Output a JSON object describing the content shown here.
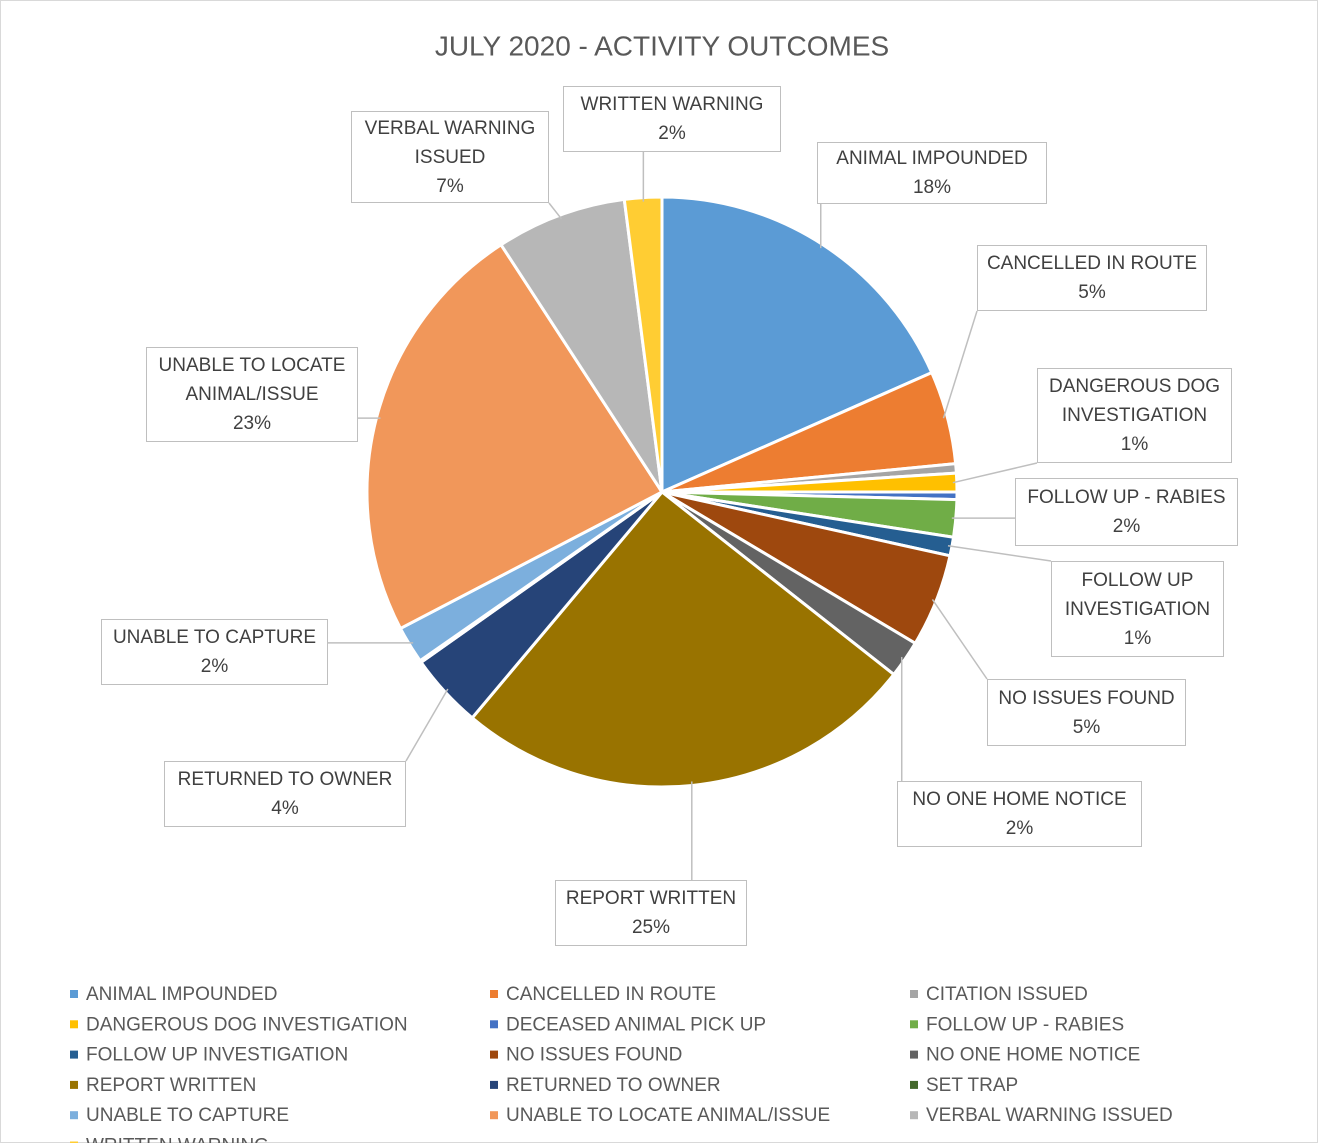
{
  "chart_data": {
    "type": "pie",
    "title": "JULY 2020 - ACTIVITY OUTCOMES",
    "categories": [
      "ANIMAL IMPOUNDED",
      "CANCELLED IN ROUTE",
      "CITATION ISSUED",
      "DANGEROUS DOG INVESTIGATION",
      "DECEASED ANIMAL PICK UP",
      "FOLLOW UP - RABIES",
      "FOLLOW UP INVESTIGATION",
      "NO ISSUES FOUND",
      "NO ONE HOME NOTICE",
      "REPORT WRITTEN",
      "RETURNED TO OWNER",
      "SET TRAP",
      "UNABLE TO CAPTURE",
      "UNABLE TO LOCATE ANIMAL/ISSUE",
      "VERBAL WARNING ISSUED",
      "WRITTEN WARNING"
    ],
    "values": [
      18,
      5,
      0.5,
      1,
      0.4,
      2,
      1,
      5,
      2,
      25,
      4,
      0.1,
      2,
      23,
      7,
      2
    ],
    "value_labels": [
      "18%",
      "5%",
      null,
      "1%",
      null,
      "2%",
      "1%",
      "5%",
      "2%",
      "25%",
      "4%",
      null,
      "2%",
      "23%",
      "7%",
      "2%"
    ],
    "colors": [
      "#5b9bd5",
      "#ed7d31",
      "#a5a5a5",
      "#ffc000",
      "#4472c4",
      "#70ad47",
      "#255e91",
      "#9e480e",
      "#636363",
      "#997300",
      "#264478",
      "#43682b",
      "#7cafdd",
      "#f1975a",
      "#b7b7b7",
      "#ffcd33"
    ],
    "legend": "bottom"
  }
}
